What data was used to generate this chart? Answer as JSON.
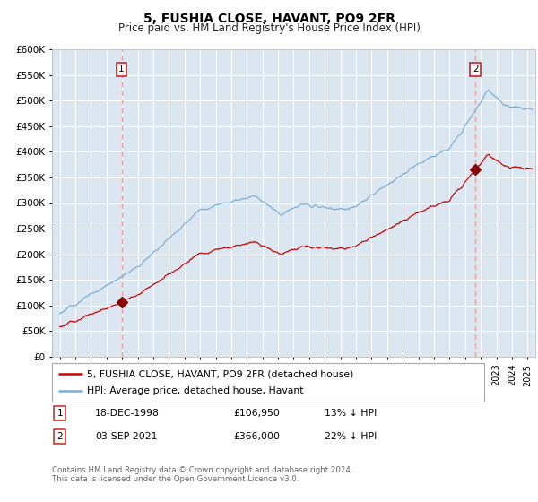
{
  "title": "5, FUSHIA CLOSE, HAVANT, PO9 2FR",
  "subtitle": "Price paid vs. HM Land Registry's House Price Index (HPI)",
  "title_fontsize": 10,
  "subtitle_fontsize": 8.5,
  "bg_color": "#dce6f1",
  "grid_color": "#ffffff",
  "label1_year": 1998.96,
  "label1_value": 106950,
  "label2_year": 2021.67,
  "label2_value": 366000,
  "red_line_color": "#cc0000",
  "blue_line_color": "#7aaed6",
  "point_color": "#880000",
  "dashed_color": "#f0a0a0",
  "legend_label_red": "5, FUSHIA CLOSE, HAVANT, PO9 2FR (detached house)",
  "legend_label_blue": "HPI: Average price, detached house, Havant",
  "annotation1_date": "18-DEC-1998",
  "annotation1_price": "£106,950",
  "annotation1_hpi": "13% ↓ HPI",
  "annotation2_date": "03-SEP-2021",
  "annotation2_price": "£366,000",
  "annotation2_hpi": "22% ↓ HPI",
  "footer": "Contains HM Land Registry data © Crown copyright and database right 2024.\nThis data is licensed under the Open Government Licence v3.0.",
  "ylim": [
    0,
    600000
  ],
  "yticks": [
    0,
    50000,
    100000,
    150000,
    200000,
    250000,
    300000,
    350000,
    400000,
    450000,
    500000,
    550000,
    600000
  ],
  "xmin": 1994.5,
  "xmax": 2025.5
}
